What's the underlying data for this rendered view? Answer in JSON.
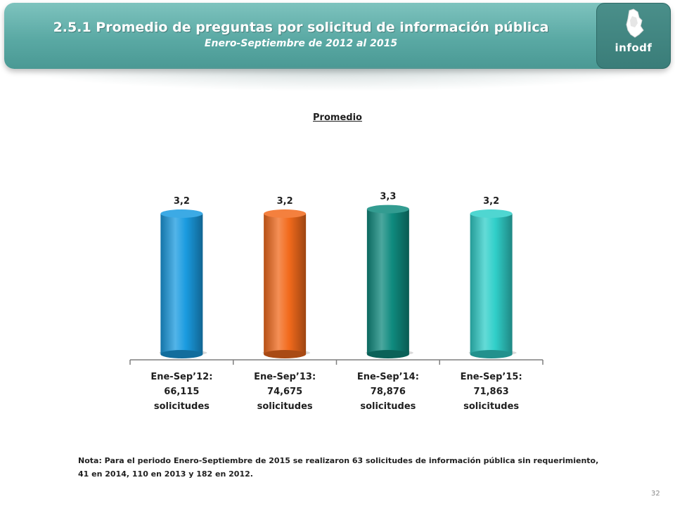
{
  "header": {
    "title": "2.5.1 Promedio de preguntas por solicitud de información pública",
    "subtitle": "Enero-Septiembre de 2012 al 2015",
    "logo_text": "infodf"
  },
  "chart_data": {
    "type": "bar",
    "title": "Promedio",
    "categories": [
      [
        "Ene-Sep’12:",
        "66,115",
        "solicitudes"
      ],
      [
        "Ene-Sep’13:",
        "74,675",
        "solicitudes"
      ],
      [
        "Ene-Sep’14:",
        "78,876",
        "solicitudes"
      ],
      [
        "Ene-Sep’15:",
        "71,863",
        "solicitudes"
      ]
    ],
    "values": [
      3.2,
      3.2,
      3.3,
      3.2
    ],
    "value_labels": [
      "3,2",
      "3,2",
      "3,3",
      "3,2"
    ],
    "colors": [
      "#1a9be0",
      "#f26a1c",
      "#0f8a7e",
      "#30cfc9"
    ],
    "shape": "cylinder",
    "legend": "none",
    "grid": false
  },
  "footer": {
    "note_line1": "Nota: Para el periodo Enero-Septiembre de 2015 se realizaron 63 solicitudes de información pública sin requerimiento,",
    "note_line2": "41 en 2014, 110 en 2013 y 182 en 2012.",
    "page_number": "32"
  }
}
